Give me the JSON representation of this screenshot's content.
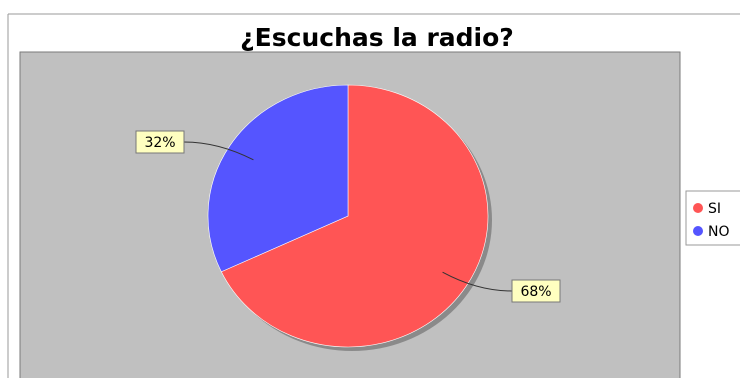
{
  "chart_data": {
    "type": "pie",
    "title": "¿Escuchas la radio?",
    "series": [
      {
        "name": "SI",
        "value": 68,
        "label": "68%",
        "color": "#ff5555"
      },
      {
        "name": "NO",
        "value": 32,
        "label": "32%",
        "color": "#5555ff"
      }
    ],
    "legend": {
      "placement": "right",
      "entries": [
        "SI",
        "NO"
      ]
    },
    "plot_background": "#c0c0c0",
    "label_background": "#ffffc0"
  }
}
